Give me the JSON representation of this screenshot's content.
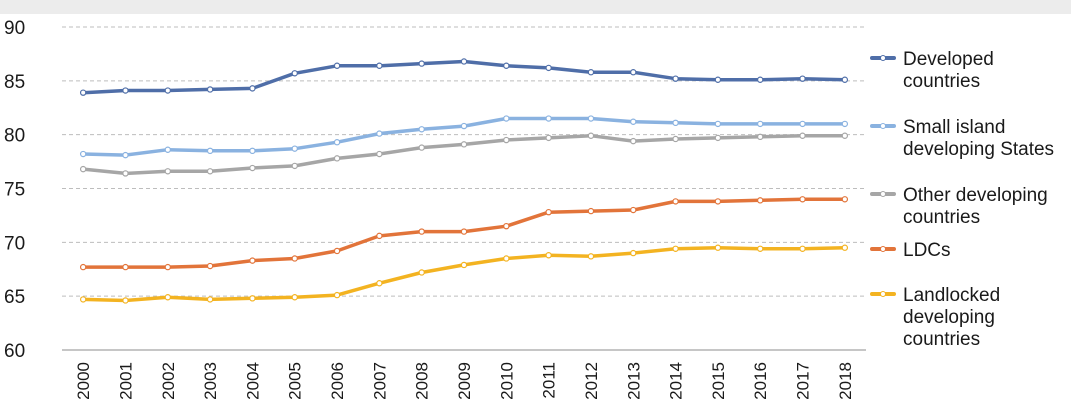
{
  "chart_data": {
    "type": "line",
    "categories": [
      "2000",
      "2001",
      "2002",
      "2003",
      "2004",
      "2005",
      "2006",
      "2007",
      "2008",
      "2009",
      "2010",
      "2011",
      "2012",
      "2013",
      "2014",
      "2015",
      "2016",
      "2017",
      "2018"
    ],
    "ylim": [
      60,
      90
    ],
    "yticks": [
      "60",
      "65",
      "70",
      "75",
      "80",
      "85",
      "90"
    ],
    "grid": "horizontal dashed",
    "legend_position": "right",
    "series": [
      {
        "name": "Developed countries",
        "legend_lines": [
          "Developed",
          "countries"
        ],
        "color": "#4f6ea8",
        "values": [
          83.9,
          84.1,
          84.1,
          84.2,
          84.3,
          85.7,
          86.4,
          86.4,
          86.6,
          86.8,
          86.4,
          86.2,
          85.8,
          85.8,
          85.2,
          85.1,
          85.1,
          85.2,
          85.1
        ]
      },
      {
        "name": "Small island developing States",
        "legend_lines": [
          "Small island",
          "developing States"
        ],
        "color": "#8ab2e0",
        "values": [
          78.2,
          78.1,
          78.6,
          78.5,
          78.5,
          78.7,
          79.3,
          80.1,
          80.5,
          80.8,
          81.5,
          81.5,
          81.5,
          81.2,
          81.1,
          81.0,
          81.0,
          81.0,
          81.0
        ]
      },
      {
        "name": "Other developing countries",
        "legend_lines": [
          "Other developing",
          "countries"
        ],
        "color": "#a6a6a6",
        "values": [
          76.8,
          76.4,
          76.6,
          76.6,
          76.9,
          77.1,
          77.8,
          78.2,
          78.8,
          79.1,
          79.5,
          79.7,
          79.9,
          79.4,
          79.6,
          79.7,
          79.8,
          79.9,
          79.9
        ]
      },
      {
        "name": "LDCs",
        "legend_lines": [
          "LDCs"
        ],
        "color": "#e2743a",
        "values": [
          67.7,
          67.7,
          67.7,
          67.8,
          68.3,
          68.5,
          69.2,
          70.6,
          71.0,
          71.0,
          71.5,
          72.8,
          72.9,
          73.0,
          73.8,
          73.8,
          73.9,
          74.0,
          74.0
        ]
      },
      {
        "name": "Landlocked developing countries",
        "legend_lines": [
          "Landlocked",
          "developing",
          "countries"
        ],
        "color": "#f3b321",
        "values": [
          64.7,
          64.6,
          64.9,
          64.7,
          64.8,
          64.9,
          65.1,
          66.2,
          67.2,
          67.9,
          68.5,
          68.8,
          68.7,
          69.0,
          69.4,
          69.5,
          69.4,
          69.4,
          69.5
        ]
      }
    ]
  }
}
